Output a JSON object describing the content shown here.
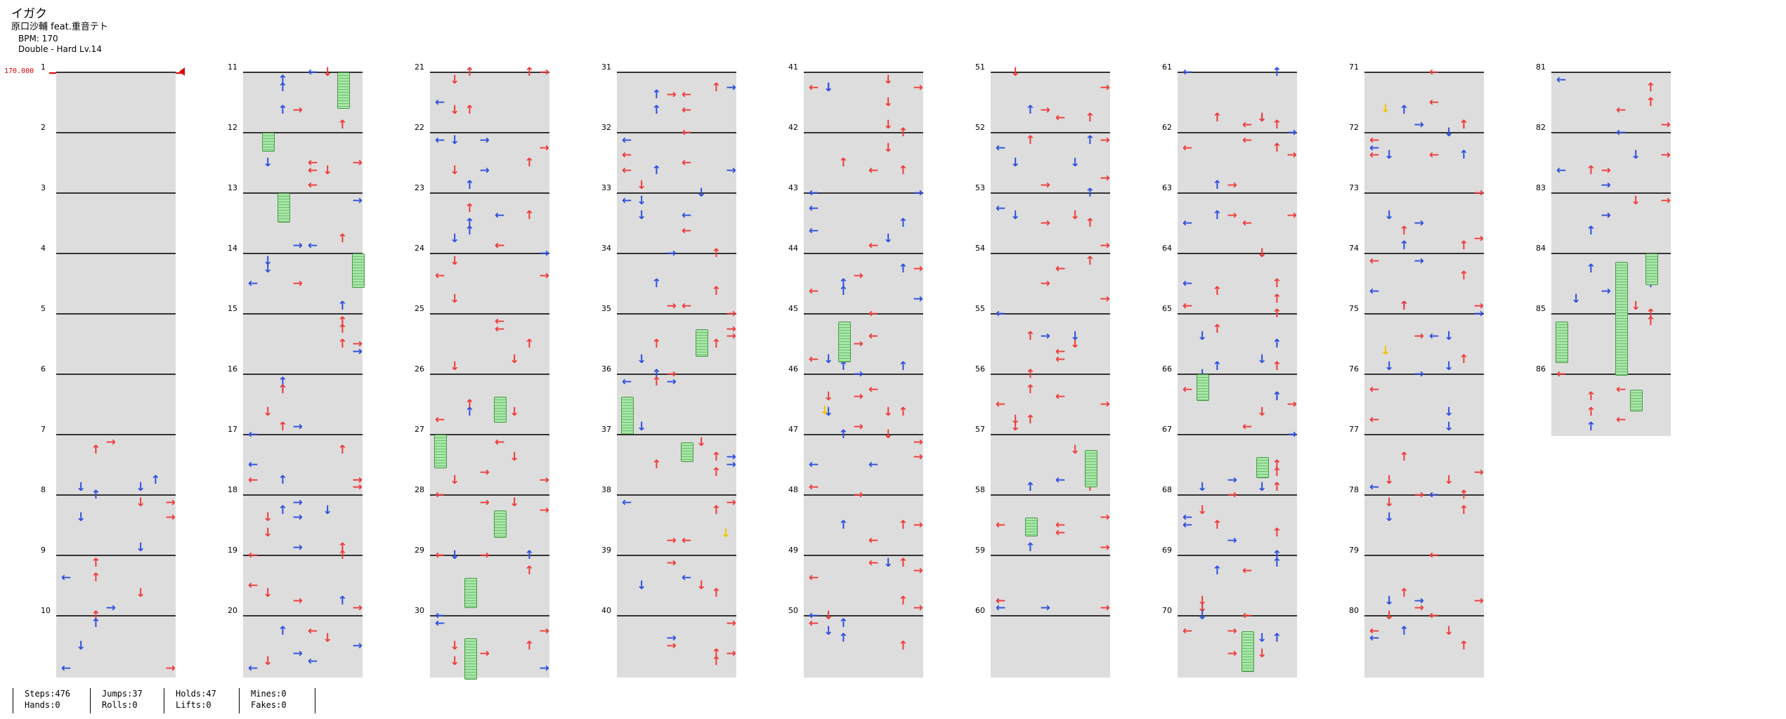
{
  "header": {
    "title": "イガク",
    "artist": "原口沙輔 feat.重音テト",
    "bpm": "BPM: 170",
    "difficulty": "Double - Hard  Lv.14"
  },
  "bpm_marker": "170.000",
  "measure_numbers": [
    "1",
    "2",
    "3",
    "4",
    "5",
    "6",
    "7",
    "8",
    "9",
    "10",
    "11",
    "12",
    "13",
    "14",
    "15",
    "16",
    "17",
    "18",
    "19",
    "20",
    "21",
    "22",
    "23",
    "24",
    "25",
    "26",
    "27",
    "28",
    "29",
    "30",
    "31",
    "32",
    "33",
    "34",
    "35",
    "36",
    "37",
    "38",
    "39",
    "40",
    "41",
    "42",
    "43",
    "44",
    "45",
    "46",
    "47",
    "48",
    "49",
    "50",
    "51",
    "52",
    "53",
    "54",
    "55",
    "56",
    "57",
    "58",
    "59",
    "60",
    "61",
    "62",
    "63",
    "64",
    "65",
    "66",
    "67",
    "68",
    "69",
    "70",
    "71",
    "72",
    "73",
    "74",
    "75",
    "76",
    "77",
    "78",
    "79",
    "80",
    "81",
    "82",
    "83",
    "84",
    "85",
    "86"
  ],
  "colors": {
    "beat_stripe": "#dddddd",
    "red_arrow": "#ef3b3b",
    "blue_arrow": "#2f4fdd",
    "mine": "#f2c500",
    "hold": "#a8e6a8",
    "bpm": "#e00000"
  },
  "stats": {
    "steps": "Steps:476",
    "jumps": "Jumps:37",
    "holds": "Holds:47",
    "mines": "Mines:0",
    "hands": "Hands:0",
    "rolls": "Rolls:0",
    "lifts": "Lifts:0",
    "fakes": "Fakes:0"
  }
}
